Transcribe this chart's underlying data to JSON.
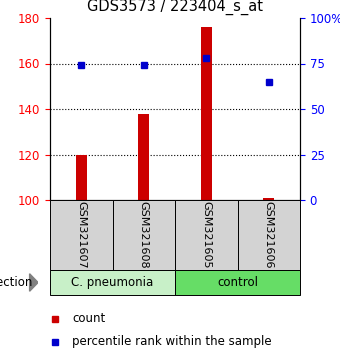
{
  "title": "GDS3573 / 223404_s_at",
  "samples": [
    "GSM321607",
    "GSM321608",
    "GSM321605",
    "GSM321606"
  ],
  "count_values": [
    120,
    138,
    176,
    101
  ],
  "percentile_values": [
    74,
    74,
    78,
    65
  ],
  "groups": [
    {
      "label": "C. pneumonia",
      "indices": [
        0,
        1
      ],
      "color": "#c8f0c8"
    },
    {
      "label": "control",
      "indices": [
        2,
        3
      ],
      "color": "#66dd66"
    }
  ],
  "group_factor": "infection",
  "bar_color": "#CC0000",
  "dot_color": "#0000CC",
  "ylim_left": [
    100,
    180
  ],
  "ylim_right": [
    0,
    100
  ],
  "yticks_left": [
    100,
    120,
    140,
    160,
    180
  ],
  "yticks_right": [
    0,
    25,
    50,
    75,
    100
  ],
  "ytick_labels_right": [
    "0",
    "25",
    "50",
    "75",
    "100%"
  ],
  "bar_base": 100,
  "gray_box_color": "#d3d3d3",
  "legend_count_label": "count",
  "legend_pct_label": "percentile rank within the sample",
  "fig_width": 3.4,
  "fig_height": 3.54,
  "dpi": 100
}
